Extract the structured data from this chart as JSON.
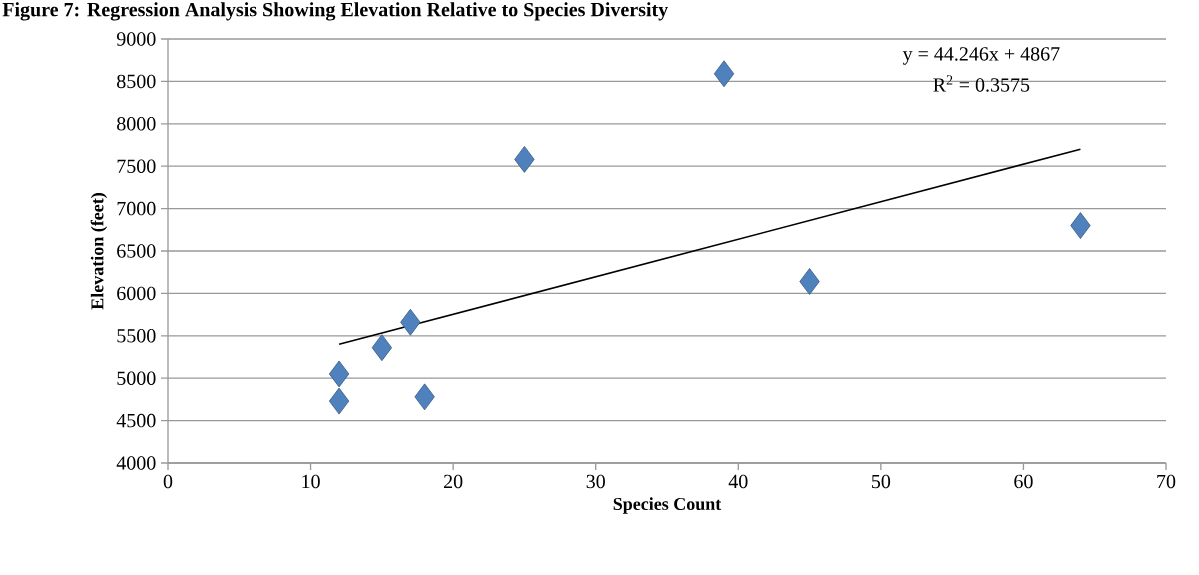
{
  "chart_data": {
    "type": "scatter",
    "title": "Figure 7: Regression Analysis Showing Elevation Relative to Species Diversity",
    "xlabel": "Species Count",
    "ylabel": "Elevation (feet)",
    "xlim": [
      0,
      70
    ],
    "xticks": [
      0,
      10,
      20,
      30,
      40,
      50,
      60,
      70
    ],
    "ylim": [
      4000,
      9000
    ],
    "yticks": [
      4000,
      4500,
      5000,
      5500,
      6000,
      6500,
      7000,
      7500,
      8000,
      8500,
      9000
    ],
    "grid": "y",
    "legend": false,
    "series": [
      {
        "marker": "diamond",
        "color": "#4f81bd",
        "x": [
          12,
          12,
          15,
          17,
          18,
          25,
          39,
          45,
          64
        ],
        "values": [
          5050,
          4730,
          5360,
          5660,
          4780,
          7580,
          8590,
          6140,
          6800
        ]
      },
      {
        "type": "line",
        "marker": "none",
        "color": "#000000",
        "x": [
          12,
          64
        ],
        "values": [
          5400,
          7700
        ]
      }
    ],
    "annotations": [
      "y = 44.246x + 4867",
      "R$^{2}$ = 0.3575"
    ]
  }
}
